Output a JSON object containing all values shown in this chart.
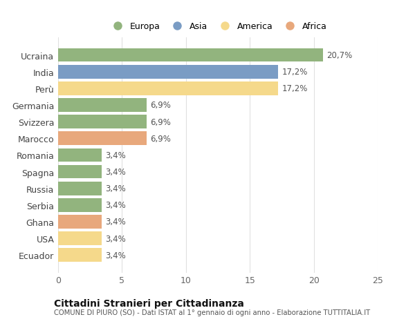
{
  "categories": [
    "Ecuador",
    "USA",
    "Ghana",
    "Serbia",
    "Russia",
    "Spagna",
    "Romania",
    "Marocco",
    "Svizzera",
    "Germania",
    "Perù",
    "India",
    "Ucraina"
  ],
  "values": [
    3.4,
    3.4,
    3.4,
    3.4,
    3.4,
    3.4,
    3.4,
    6.9,
    6.9,
    6.9,
    17.2,
    17.2,
    20.7
  ],
  "labels": [
    "3,4%",
    "3,4%",
    "3,4%",
    "3,4%",
    "3,4%",
    "3,4%",
    "3,4%",
    "6,9%",
    "6,9%",
    "6,9%",
    "17,2%",
    "17,2%",
    "20,7%"
  ],
  "colors": [
    "#f5d98b",
    "#f5d98b",
    "#e8a87c",
    "#92b47e",
    "#92b47e",
    "#92b47e",
    "#92b47e",
    "#e8a87c",
    "#92b47e",
    "#92b47e",
    "#f5d98b",
    "#7a9cc4",
    "#92b47e"
  ],
  "legend_labels": [
    "Europa",
    "Asia",
    "America",
    "Africa"
  ],
  "legend_colors": [
    "#92b47e",
    "#7a9cc4",
    "#f5d98b",
    "#e8a87c"
  ],
  "title": "Cittadini Stranieri per Cittadinanza",
  "subtitle": "COMUNE DI PIURO (SO) - Dati ISTAT al 1° gennaio di ogni anno - Elaborazione TUTTITALIA.IT",
  "xlim": [
    0,
    25
  ],
  "xticks": [
    0,
    5,
    10,
    15,
    20,
    25
  ],
  "background_color": "#ffffff",
  "grid_color": "#e0e0e0"
}
